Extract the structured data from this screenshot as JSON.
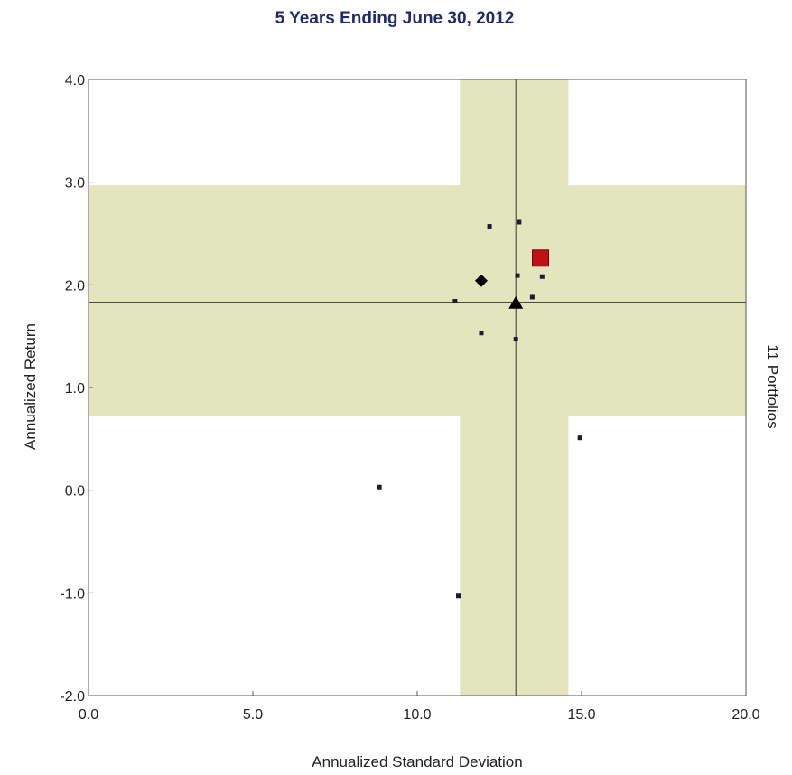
{
  "chart_data": {
    "type": "scatter",
    "title": "5 Years Ending June 30, 2012",
    "xlabel": "Annualized Standard Deviation",
    "ylabel": "Annualized Return",
    "side_label": "11 Portfolios",
    "xlim": [
      0.0,
      20.0
    ],
    "ylim": [
      -2.0,
      4.0
    ],
    "x_ticks": [
      "0.0",
      "5.0",
      "10.0",
      "15.0",
      "20.0"
    ],
    "x_tick_values": [
      0,
      5,
      10,
      15,
      20
    ],
    "y_ticks": [
      "-2.0",
      "-1.0",
      "0.0",
      "1.0",
      "2.0",
      "3.0",
      "4.0"
    ],
    "y_tick_values": [
      -2,
      -1,
      0,
      1,
      2,
      3,
      4
    ],
    "grid": false,
    "median_lines": {
      "x": 13.0,
      "y": 1.83
    },
    "shaded_bands": {
      "x_range": [
        11.3,
        14.6
      ],
      "y_range": [
        0.72,
        2.97
      ],
      "color": "#e3e6bd"
    },
    "series": [
      {
        "marker": "dot",
        "color": "#1a1a3a",
        "points": [
          {
            "x": 12.2,
            "y": 2.57
          },
          {
            "x": 13.1,
            "y": 2.61
          },
          {
            "x": 13.05,
            "y": 2.09
          },
          {
            "x": 13.8,
            "y": 2.08
          },
          {
            "x": 13.5,
            "y": 1.88
          },
          {
            "x": 11.15,
            "y": 1.84
          },
          {
            "x": 11.95,
            "y": 1.53
          },
          {
            "x": 13.0,
            "y": 1.47
          },
          {
            "x": 14.95,
            "y": 0.51
          },
          {
            "x": 8.85,
            "y": 0.03
          },
          {
            "x": 11.25,
            "y": -1.03
          }
        ]
      },
      {
        "marker": "square",
        "color": "#c0101a",
        "points": [
          {
            "x": 13.75,
            "y": 2.26
          }
        ]
      },
      {
        "marker": "diamond",
        "color": "#000000",
        "points": [
          {
            "x": 11.95,
            "y": 2.04
          }
        ]
      },
      {
        "marker": "triangle",
        "color": "#000000",
        "points": [
          {
            "x": 13.0,
            "y": 1.82
          }
        ]
      }
    ]
  }
}
